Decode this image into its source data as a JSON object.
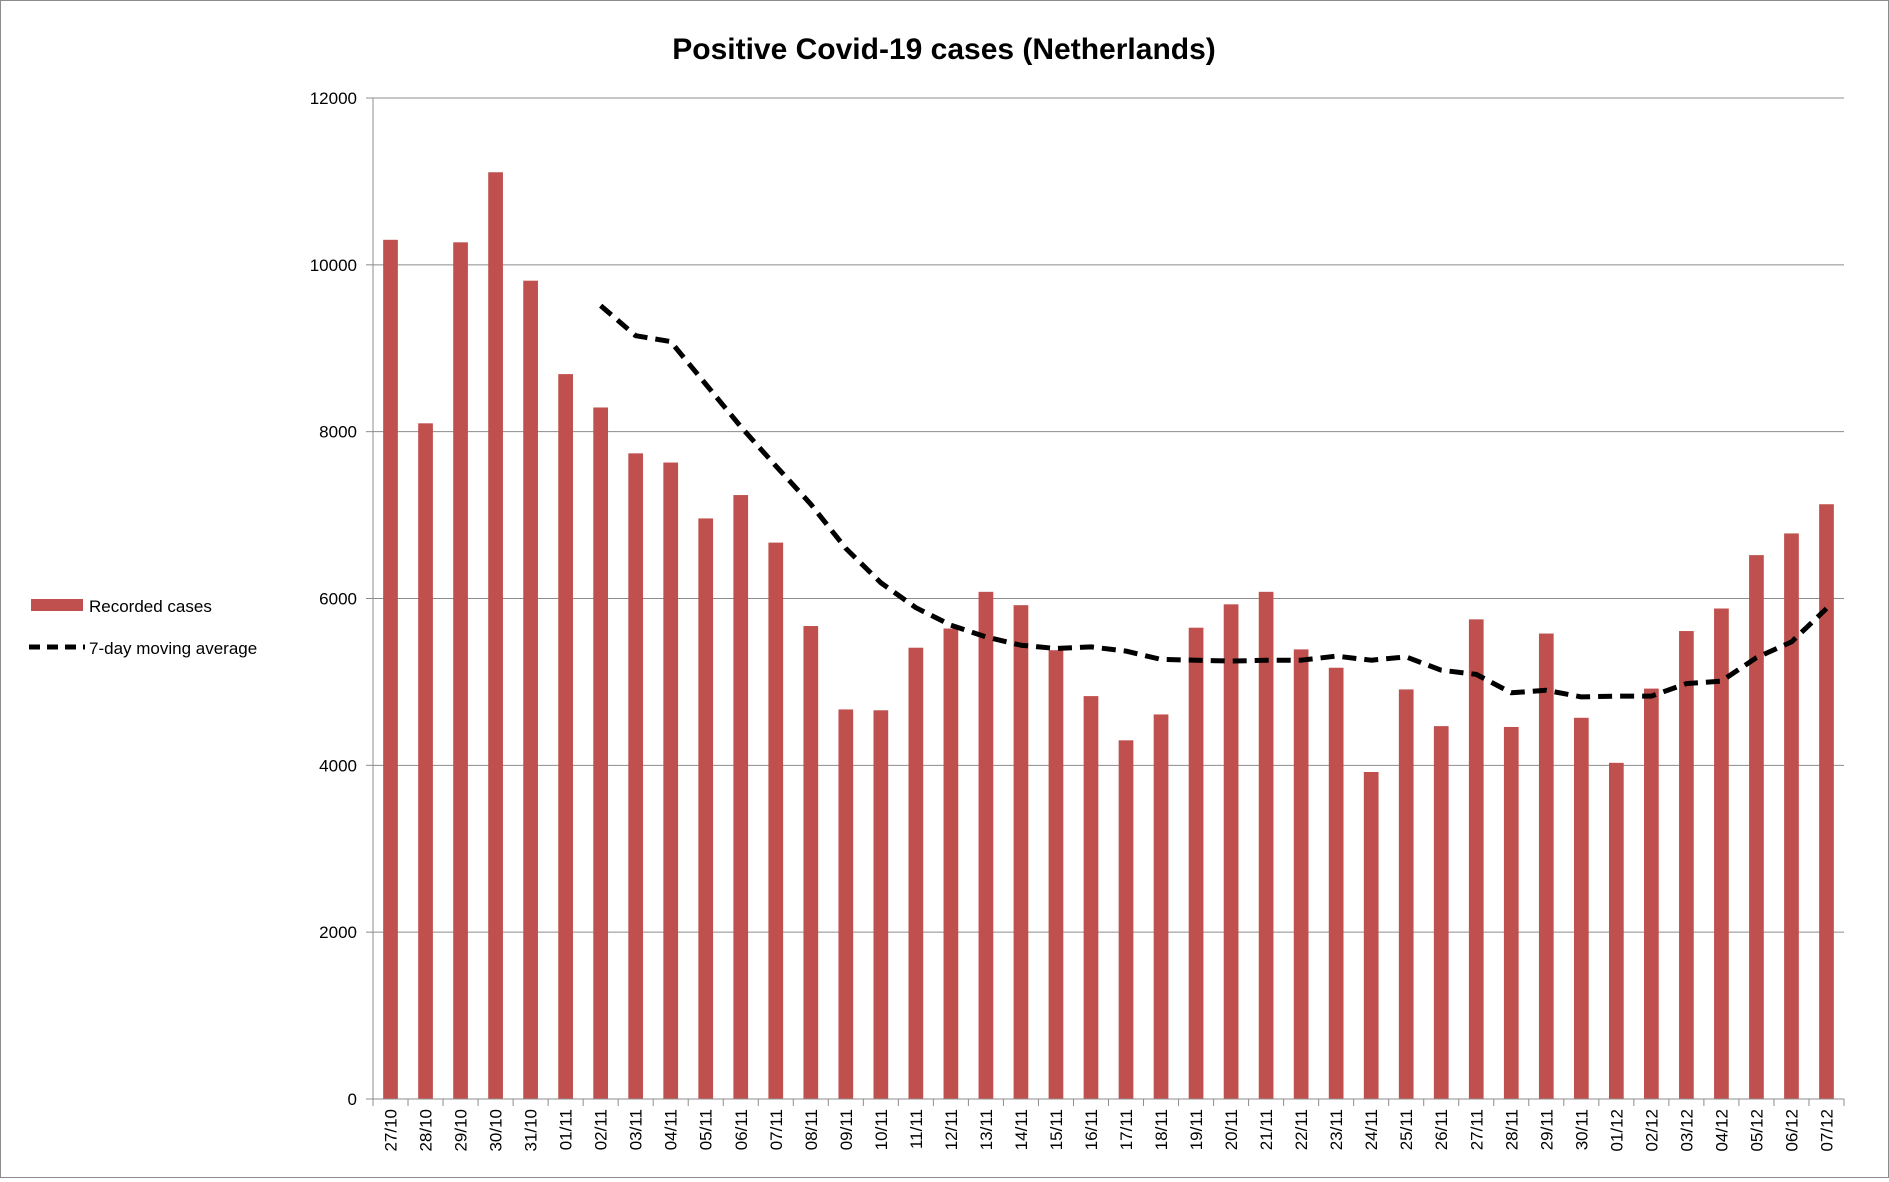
{
  "chart_data": {
    "type": "bar",
    "title": "Positive Covid-19 cases (Netherlands)",
    "xlabel": "",
    "ylabel": "",
    "ylim": [
      0,
      12000
    ],
    "yticks": [
      "0",
      "2000",
      "4000",
      "6000",
      "8000",
      "10000",
      "12000"
    ],
    "grid": true,
    "legend_position": "left",
    "categories": [
      "27/10",
      "28/10",
      "29/10",
      "30/10",
      "31/10",
      "01/11",
      "02/11",
      "03/11",
      "04/11",
      "05/11",
      "06/11",
      "07/11",
      "08/11",
      "09/11",
      "10/11",
      "11/11",
      "12/11",
      "13/11",
      "14/11",
      "15/11",
      "16/11",
      "17/11",
      "18/11",
      "19/11",
      "20/11",
      "21/11",
      "22/11",
      "23/11",
      "24/11",
      "25/11",
      "26/11",
      "27/11",
      "28/11",
      "29/11",
      "30/11",
      "01/12",
      "02/12",
      "03/12",
      "04/12",
      "05/12",
      "06/12",
      "07/12"
    ],
    "series": [
      {
        "name": "Recorded cases",
        "kind": "bar",
        "color": "#c0504d",
        "values": [
          10300,
          8100,
          10270,
          11110,
          9810,
          8690,
          8290,
          7740,
          7630,
          6960,
          7240,
          6670,
          5670,
          4670,
          4660,
          5410,
          5640,
          6080,
          5920,
          5380,
          4830,
          4300,
          4610,
          5650,
          5930,
          6080,
          5390,
          5170,
          3920,
          4910,
          4470,
          5750,
          4460,
          5580,
          4570,
          4030,
          4920,
          5610,
          5880,
          6520,
          6780,
          7130
        ]
      },
      {
        "name": "7-day moving average",
        "kind": "line",
        "style": "dashed",
        "color": "#000000",
        "values": [
          null,
          null,
          null,
          null,
          null,
          null,
          9510,
          9150,
          9080,
          8570,
          8060,
          7590,
          7130,
          6600,
          6190,
          5890,
          5680,
          5540,
          5440,
          5400,
          5420,
          5370,
          5270,
          5260,
          5250,
          5260,
          5260,
          5310,
          5260,
          5300,
          5140,
          5090,
          4870,
          4900,
          4820,
          4830,
          4830,
          4980,
          5010,
          5290,
          5480,
          5880
        ]
      }
    ]
  }
}
